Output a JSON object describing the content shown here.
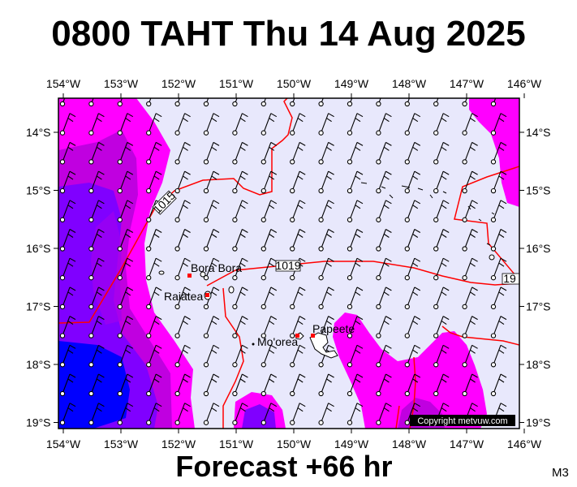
{
  "header": {
    "title": "0800 TAHT Thu 14 Aug 2025"
  },
  "footer": {
    "forecast": "Forecast +66 hr",
    "code": "M3"
  },
  "map": {
    "longitude_labels": [
      "154°W",
      "153°W",
      "152°W",
      "151°W",
      "150°W",
      "149°W",
      "148°W",
      "147°W",
      "146°W"
    ],
    "latitude_labels": [
      "14°S",
      "15°S",
      "16°S",
      "17°S",
      "18°S",
      "19°S"
    ],
    "isobar_labels": [
      "1015",
      "1019",
      "19"
    ],
    "place_labels": [
      "Bora Bora",
      "Raiatea",
      "Mo'orea",
      "Papeete"
    ],
    "copyright": "Copyright metvuw.com",
    "colors": {
      "background": "#e8e8fc",
      "precip_light": "#ff00ff",
      "precip_medium": "#c000e0",
      "precip_heavy": "#8000ff",
      "precip_extreme": "#0000ff",
      "isobar": "#ff0000",
      "land": "#ffffff"
    }
  }
}
